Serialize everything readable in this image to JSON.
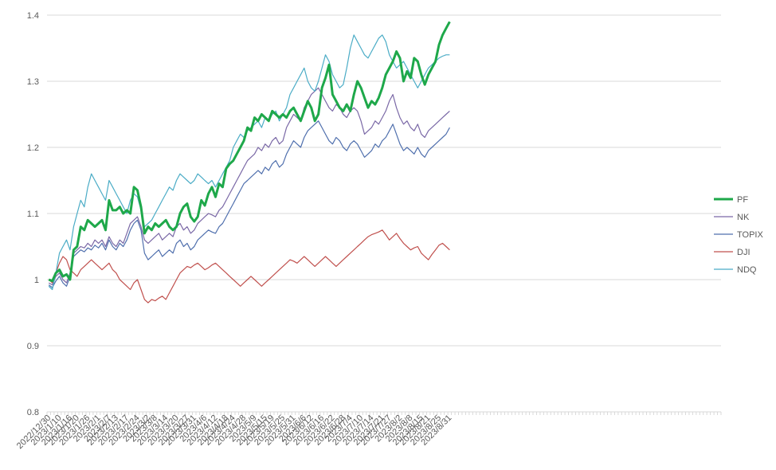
{
  "chart_data": {
    "type": "line",
    "title": "",
    "xlabel": "",
    "ylabel": "",
    "ylim": [
      0.8,
      1.4
    ],
    "yticks": [
      "0.8",
      "0.9",
      "1",
      "1.1",
      "1.2",
      "1.3",
      "1.4"
    ],
    "grid": true,
    "legend_position": "right",
    "x_tick_labels": [
      "2022/12/30",
      "2023/1/10",
      "2023/1/16",
      "2023/1/20",
      "2023/1/26",
      "2023/2/1",
      "2023/2/7",
      "2023/2/13",
      "2023/2/17",
      "2023/2/24",
      "2023/3/2",
      "2023/3/8",
      "2023/3/14",
      "2023/3/20",
      "2023/3/27",
      "2023/3/31",
      "2023/4/6",
      "2023/4/12",
      "2023/4/18",
      "2023/4/24",
      "2023/4/28",
      "2023/5/9",
      "2023/5/15",
      "2023/5/19",
      "2023/5/25",
      "2023/5/31",
      "2023/6/6",
      "2023/6/12",
      "2023/6/16",
      "2023/6/22",
      "2023/6/28",
      "2023/7/4",
      "2023/7/10",
      "2023/7/14",
      "2023/7/21",
      "2023/7/27",
      "2023/8/2",
      "2023/8/8",
      "2023/8/15",
      "2023/8/21",
      "2023/8/25",
      "2023/8/31"
    ],
    "series": [
      {
        "name": "PF",
        "color": "#1ea84a",
        "width": 3,
        "values": [
          1.0,
          0.998,
          1.01,
          1.015,
          1.005,
          1.008,
          1.0,
          1.045,
          1.05,
          1.08,
          1.075,
          1.09,
          1.085,
          1.08,
          1.085,
          1.09,
          1.075,
          1.12,
          1.105,
          1.105,
          1.11,
          1.1,
          1.105,
          1.1,
          1.14,
          1.135,
          1.11,
          1.07,
          1.08,
          1.075,
          1.085,
          1.08,
          1.085,
          1.09,
          1.08,
          1.075,
          1.08,
          1.1,
          1.11,
          1.115,
          1.095,
          1.088,
          1.095,
          1.12,
          1.112,
          1.13,
          1.14,
          1.125,
          1.145,
          1.14,
          1.168,
          1.175,
          1.18,
          1.19,
          1.2,
          1.21,
          1.23,
          1.225,
          1.245,
          1.24,
          1.25,
          1.245,
          1.24,
          1.255,
          1.25,
          1.245,
          1.25,
          1.245,
          1.255,
          1.26,
          1.25,
          1.24,
          1.255,
          1.27,
          1.26,
          1.24,
          1.25,
          1.29,
          1.305,
          1.325,
          1.28,
          1.27,
          1.26,
          1.255,
          1.265,
          1.255,
          1.28,
          1.3,
          1.29,
          1.275,
          1.26,
          1.27,
          1.265,
          1.275,
          1.29,
          1.31,
          1.32,
          1.33,
          1.345,
          1.335,
          1.3,
          1.315,
          1.305,
          1.335,
          1.33,
          1.31,
          1.295,
          1.31,
          1.32,
          1.33,
          1.355,
          1.37,
          1.38,
          1.39
        ]
      },
      {
        "name": "NK",
        "color": "#7a68a6",
        "width": 1.2,
        "values": [
          0.995,
          0.992,
          1.005,
          1.01,
          1.0,
          0.995,
          1.01,
          1.04,
          1.045,
          1.05,
          1.048,
          1.055,
          1.05,
          1.06,
          1.055,
          1.06,
          1.05,
          1.065,
          1.055,
          1.05,
          1.06,
          1.055,
          1.07,
          1.085,
          1.09,
          1.095,
          1.08,
          1.06,
          1.055,
          1.06,
          1.065,
          1.07,
          1.06,
          1.065,
          1.07,
          1.065,
          1.08,
          1.085,
          1.075,
          1.08,
          1.07,
          1.075,
          1.085,
          1.09,
          1.095,
          1.1,
          1.098,
          1.095,
          1.105,
          1.11,
          1.12,
          1.13,
          1.14,
          1.15,
          1.16,
          1.17,
          1.18,
          1.185,
          1.19,
          1.2,
          1.195,
          1.205,
          1.2,
          1.21,
          1.215,
          1.205,
          1.21,
          1.23,
          1.24,
          1.25,
          1.245,
          1.24,
          1.26,
          1.27,
          1.28,
          1.285,
          1.29,
          1.28,
          1.27,
          1.26,
          1.255,
          1.265,
          1.26,
          1.25,
          1.245,
          1.255,
          1.26,
          1.255,
          1.24,
          1.22,
          1.225,
          1.23,
          1.24,
          1.235,
          1.245,
          1.255,
          1.27,
          1.28,
          1.26,
          1.245,
          1.235,
          1.24,
          1.23,
          1.225,
          1.235,
          1.22,
          1.215,
          1.225,
          1.23,
          1.235,
          1.24,
          1.245,
          1.25,
          1.255
        ]
      },
      {
        "name": "TOPIX",
        "color": "#4f6fad",
        "width": 1.2,
        "values": [
          0.992,
          0.988,
          0.998,
          1.005,
          0.995,
          0.99,
          1.005,
          1.035,
          1.04,
          1.045,
          1.042,
          1.048,
          1.045,
          1.052,
          1.048,
          1.055,
          1.045,
          1.06,
          1.05,
          1.045,
          1.055,
          1.05,
          1.06,
          1.075,
          1.085,
          1.09,
          1.075,
          1.04,
          1.03,
          1.035,
          1.04,
          1.045,
          1.035,
          1.04,
          1.045,
          1.04,
          1.055,
          1.06,
          1.05,
          1.055,
          1.045,
          1.05,
          1.06,
          1.065,
          1.07,
          1.075,
          1.072,
          1.07,
          1.08,
          1.085,
          1.095,
          1.105,
          1.115,
          1.125,
          1.135,
          1.145,
          1.15,
          1.155,
          1.16,
          1.165,
          1.16,
          1.17,
          1.165,
          1.175,
          1.18,
          1.17,
          1.175,
          1.19,
          1.2,
          1.21,
          1.205,
          1.2,
          1.215,
          1.225,
          1.23,
          1.235,
          1.24,
          1.23,
          1.22,
          1.21,
          1.205,
          1.215,
          1.21,
          1.2,
          1.195,
          1.205,
          1.21,
          1.205,
          1.195,
          1.185,
          1.19,
          1.195,
          1.205,
          1.2,
          1.21,
          1.215,
          1.225,
          1.235,
          1.22,
          1.205,
          1.195,
          1.2,
          1.195,
          1.19,
          1.2,
          1.19,
          1.185,
          1.195,
          1.2,
          1.205,
          1.21,
          1.215,
          1.22,
          1.23
        ]
      },
      {
        "name": "DJI",
        "color": "#c0504d",
        "width": 1.2,
        "values": [
          1.0,
          0.995,
          1.01,
          1.025,
          1.035,
          1.03,
          1.015,
          1.01,
          1.005,
          1.015,
          1.02,
          1.025,
          1.03,
          1.025,
          1.02,
          1.015,
          1.02,
          1.025,
          1.015,
          1.01,
          1.0,
          0.995,
          0.99,
          0.985,
          0.995,
          1.0,
          0.985,
          0.97,
          0.965,
          0.97,
          0.968,
          0.972,
          0.975,
          0.97,
          0.98,
          0.99,
          1.0,
          1.01,
          1.015,
          1.02,
          1.018,
          1.022,
          1.025,
          1.02,
          1.015,
          1.018,
          1.022,
          1.025,
          1.02,
          1.015,
          1.01,
          1.005,
          1.0,
          0.995,
          0.99,
          0.995,
          1.0,
          1.005,
          1.0,
          0.995,
          0.99,
          0.995,
          1.0,
          1.005,
          1.01,
          1.015,
          1.02,
          1.025,
          1.03,
          1.028,
          1.025,
          1.03,
          1.035,
          1.03,
          1.025,
          1.02,
          1.025,
          1.03,
          1.035,
          1.03,
          1.025,
          1.02,
          1.025,
          1.03,
          1.035,
          1.04,
          1.045,
          1.05,
          1.055,
          1.06,
          1.065,
          1.068,
          1.07,
          1.072,
          1.075,
          1.068,
          1.06,
          1.065,
          1.07,
          1.062,
          1.055,
          1.05,
          1.045,
          1.048,
          1.05,
          1.04,
          1.035,
          1.03,
          1.038,
          1.045,
          1.052,
          1.055,
          1.05,
          1.045
        ]
      },
      {
        "name": "NDQ",
        "color": "#4bacc6",
        "width": 1.2,
        "values": [
          0.99,
          0.985,
          1.01,
          1.04,
          1.05,
          1.06,
          1.045,
          1.08,
          1.1,
          1.12,
          1.11,
          1.14,
          1.16,
          1.15,
          1.14,
          1.13,
          1.12,
          1.15,
          1.14,
          1.13,
          1.12,
          1.11,
          1.1,
          1.12,
          1.13,
          1.125,
          1.105,
          1.08,
          1.085,
          1.09,
          1.1,
          1.11,
          1.12,
          1.13,
          1.14,
          1.135,
          1.15,
          1.16,
          1.155,
          1.15,
          1.145,
          1.15,
          1.16,
          1.155,
          1.15,
          1.145,
          1.15,
          1.14,
          1.15,
          1.16,
          1.17,
          1.18,
          1.2,
          1.21,
          1.22,
          1.215,
          1.225,
          1.23,
          1.235,
          1.24,
          1.23,
          1.245,
          1.24,
          1.25,
          1.255,
          1.24,
          1.25,
          1.26,
          1.28,
          1.29,
          1.3,
          1.31,
          1.32,
          1.3,
          1.29,
          1.285,
          1.3,
          1.32,
          1.34,
          1.33,
          1.31,
          1.3,
          1.29,
          1.295,
          1.32,
          1.35,
          1.37,
          1.36,
          1.35,
          1.34,
          1.335,
          1.345,
          1.355,
          1.365,
          1.37,
          1.36,
          1.34,
          1.33,
          1.32,
          1.325,
          1.33,
          1.32,
          1.31,
          1.3,
          1.29,
          1.3,
          1.31,
          1.32,
          1.325,
          1.33,
          1.335,
          1.338,
          1.34,
          1.34
        ]
      }
    ]
  }
}
